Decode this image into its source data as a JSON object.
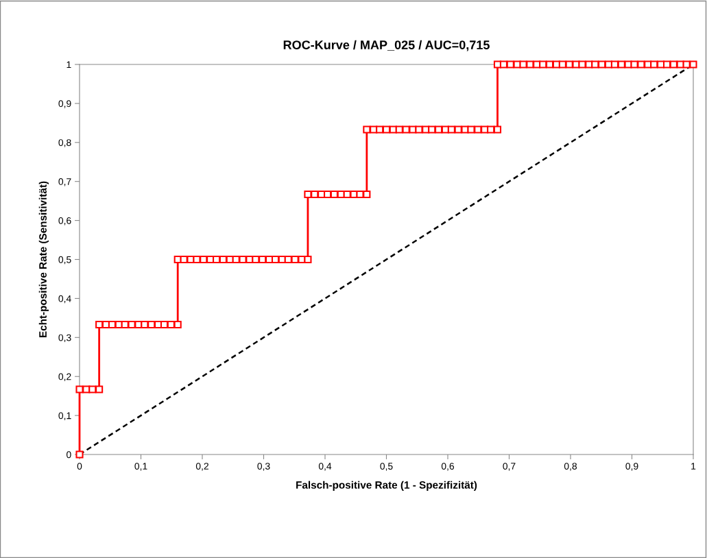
{
  "chart_data": {
    "type": "line",
    "title": "ROC-Kurve / MAP_025 / AUC=0,715",
    "xlabel": "Falsch-positive Rate (1 - Spezifizität)",
    "ylabel": "Echt-positive Rate (Sensitivität)",
    "xlim": [
      0,
      1
    ],
    "ylim": [
      0,
      1
    ],
    "xticks": [
      0,
      {
        "value": 0.1,
        "label": "0,1"
      },
      {
        "value": 0.2,
        "label": "0,2"
      },
      {
        "value": 0.3,
        "label": "0,3"
      },
      {
        "value": 0.4,
        "label": "0,4"
      },
      {
        "value": 0.5,
        "label": "0,5"
      },
      {
        "value": 0.6,
        "label": "0,6"
      },
      {
        "value": 0.7,
        "label": "0,7"
      },
      {
        "value": 0.8,
        "label": "0,8"
      },
      {
        "value": 0.9,
        "label": "0,9"
      },
      1
    ],
    "yticks": [
      0,
      {
        "value": 0.1,
        "label": "0,1"
      },
      {
        "value": 0.2,
        "label": "0,2"
      },
      {
        "value": 0.3,
        "label": "0,3"
      },
      {
        "value": 0.4,
        "label": "0,4"
      },
      {
        "value": 0.5,
        "label": "0,5"
      },
      {
        "value": 0.6,
        "label": "0,6"
      },
      {
        "value": 0.7,
        "label": "0,7"
      },
      {
        "value": 0.8,
        "label": "0,8"
      },
      {
        "value": 0.9,
        "label": "0,9"
      },
      1
    ],
    "grid": false,
    "legend": false,
    "series": [
      {
        "color": "#ff0000",
        "marker": "square",
        "line_style": "solid",
        "x": [
          0,
          0,
          0.011,
          0.021,
          0.032,
          0.032,
          0.043,
          0.053,
          0.064,
          0.074,
          0.085,
          0.096,
          0.106,
          0.117,
          0.128,
          0.138,
          0.149,
          0.16,
          0.16,
          0.17,
          0.181,
          0.191,
          0.202,
          0.213,
          0.223,
          0.234,
          0.245,
          0.255,
          0.266,
          0.277,
          0.287,
          0.298,
          0.309,
          0.319,
          0.33,
          0.34,
          0.351,
          0.362,
          0.372,
          0.372,
          0.383,
          0.394,
          0.404,
          0.415,
          0.426,
          0.436,
          0.447,
          0.457,
          0.468,
          0.468,
          0.479,
          0.489,
          0.5,
          0.511,
          0.521,
          0.532,
          0.543,
          0.553,
          0.564,
          0.574,
          0.585,
          0.596,
          0.606,
          0.617,
          0.628,
          0.638,
          0.649,
          0.66,
          0.67,
          0.681,
          0.681,
          0.691,
          0.702,
          0.713,
          0.723,
          0.734,
          0.745,
          0.755,
          0.766,
          0.777,
          0.787,
          0.798,
          0.809,
          0.819,
          0.83,
          0.84,
          0.851,
          0.862,
          0.872,
          0.883,
          0.894,
          0.904,
          0.915,
          0.926,
          0.936,
          0.947,
          0.957,
          0.968,
          0.979,
          0.989,
          1
        ],
        "values": [
          0,
          0.167,
          0.167,
          0.167,
          0.167,
          0.333,
          0.333,
          0.333,
          0.333,
          0.333,
          0.333,
          0.333,
          0.333,
          0.333,
          0.333,
          0.333,
          0.333,
          0.333,
          0.5,
          0.5,
          0.5,
          0.5,
          0.5,
          0.5,
          0.5,
          0.5,
          0.5,
          0.5,
          0.5,
          0.5,
          0.5,
          0.5,
          0.5,
          0.5,
          0.5,
          0.5,
          0.5,
          0.5,
          0.5,
          0.667,
          0.667,
          0.667,
          0.667,
          0.667,
          0.667,
          0.667,
          0.667,
          0.667,
          0.667,
          0.833,
          0.833,
          0.833,
          0.833,
          0.833,
          0.833,
          0.833,
          0.833,
          0.833,
          0.833,
          0.833,
          0.833,
          0.833,
          0.833,
          0.833,
          0.833,
          0.833,
          0.833,
          0.833,
          0.833,
          0.833,
          1,
          1,
          1,
          1,
          1,
          1,
          1,
          1,
          1,
          1,
          1,
          1,
          1,
          1,
          1,
          1,
          1,
          1,
          1,
          1,
          1,
          1,
          1,
          1,
          1,
          1,
          1,
          1,
          1,
          1,
          1
        ]
      },
      {
        "color": "#000000",
        "marker": "none",
        "line_style": "dashed",
        "x": [
          0,
          1
        ],
        "values": [
          0,
          1
        ]
      }
    ]
  }
}
